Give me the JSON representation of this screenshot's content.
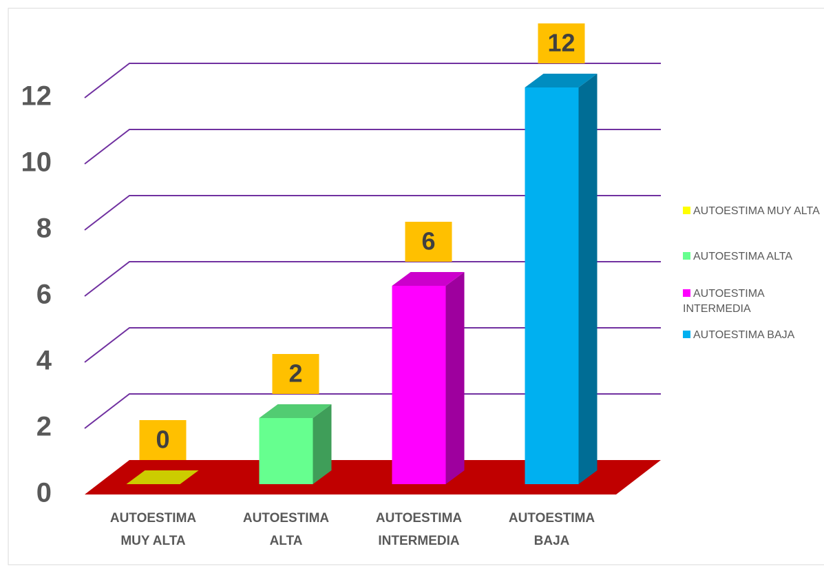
{
  "chart_data": {
    "type": "bar3d",
    "categories": [
      "AUTOESTIMA MUY ALTA",
      "AUTOESTIMA ALTA",
      "AUTOESTIMA INTERMEDIA",
      "AUTOESTIMA BAJA"
    ],
    "values": [
      0,
      2,
      6,
      12
    ],
    "colors": [
      "#ffff00",
      "#66ff8f",
      "#ff00ff",
      "#00b0f0"
    ],
    "ylim": [
      0,
      12
    ],
    "yticks": [
      0,
      2,
      4,
      6,
      8,
      10,
      12
    ],
    "grid": true,
    "legend": "right"
  }
}
